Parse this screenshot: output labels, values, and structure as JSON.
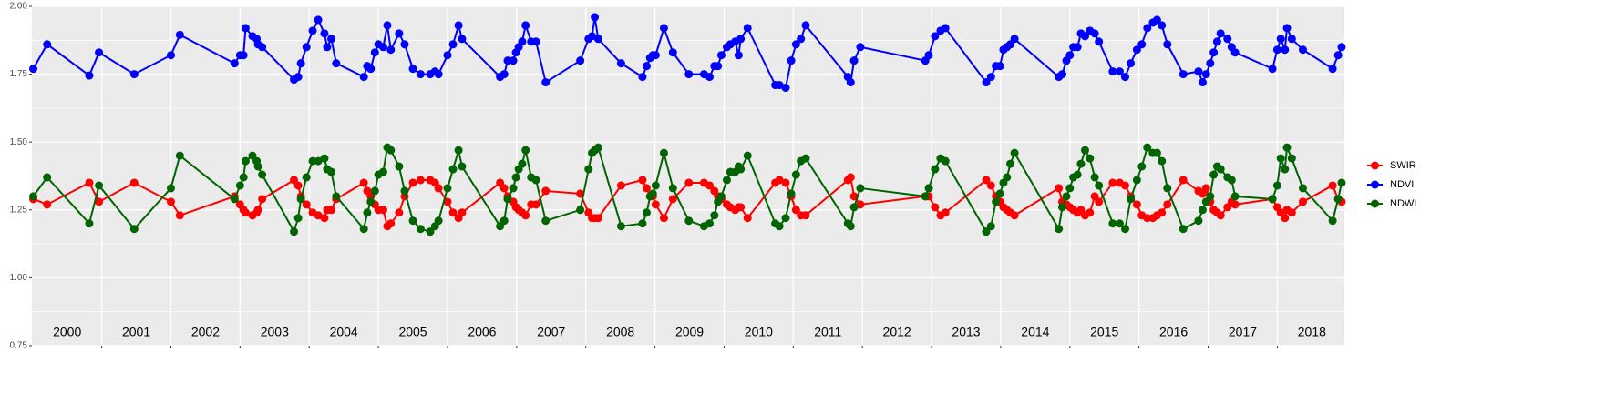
{
  "chart_data": {
    "type": "line",
    "xlim": [
      1999.99,
      2018.97
    ],
    "ylim": [
      0.75,
      2.0
    ],
    "yticks": [
      0.75,
      {
        "value": 1,
        "label": "1.00"
      },
      1.25,
      {
        "value": 1.5,
        "label": "1.50"
      },
      1.75,
      {
        "value": 2,
        "label": "2.00"
      }
    ],
    "xticks": [
      2001,
      2002,
      2003,
      2004,
      2005,
      2006,
      2007,
      2008,
      2009,
      2010,
      2011,
      2012,
      2013,
      2014,
      2015,
      2016,
      2017,
      2018
    ],
    "grid": true,
    "legend": "right",
    "year_labels": [
      "2000",
      "2001",
      "2002",
      "2003",
      "2004",
      "2005",
      "2006",
      "2007",
      "2008",
      "2009",
      "2010",
      "2011",
      "2012",
      "2013",
      "2014",
      "2015",
      "2016",
      "2017",
      "2018"
    ],
    "x": [
      2000.01,
      2000.21,
      2000.82,
      2000.96,
      2001.47,
      2002.0,
      2002.13,
      2002.92,
      2003.0,
      2003.05,
      2003.08,
      2003.18,
      2003.24,
      2003.26,
      2003.32,
      2003.78,
      2003.84,
      2003.88,
      2003.96,
      2004.05,
      2004.13,
      2004.22,
      2004.26,
      2004.32,
      2004.39,
      2004.79,
      2004.84,
      2004.89,
      2004.95,
      2005.0,
      2005.07,
      2005.13,
      2005.18,
      2005.3,
      2005.38,
      2005.5,
      2005.61,
      2005.75,
      2005.82,
      2005.87,
      2006.0,
      2006.08,
      2006.16,
      2006.21,
      2006.76,
      2006.82,
      2006.87,
      2006.95,
      2006.99,
      2007.03,
      2007.08,
      2007.13,
      2007.21,
      2007.28,
      2007.42,
      2007.92,
      2008.04,
      2008.09,
      2008.13,
      2008.18,
      2008.51,
      2008.82,
      2008.88,
      2008.93,
      2008.97,
      2009.01,
      2009.13,
      2009.26,
      2009.49,
      2009.71,
      2009.79,
      2009.86,
      2009.91,
      2009.96,
      2010.04,
      2010.09,
      2010.16,
      2010.21,
      2010.24,
      2010.34,
      2010.74,
      2010.8,
      2010.89,
      2010.97,
      2011.04,
      2011.11,
      2011.18,
      2011.79,
      2011.83,
      2011.88,
      2011.97,
      2012.91,
      2012.96,
      2013.05,
      2013.13,
      2013.2,
      2013.79,
      2013.86,
      2013.93,
      2013.99,
      2014.04,
      2014.09,
      2014.14,
      2014.2,
      2014.84,
      2014.89,
      2014.95,
      2015.0,
      2015.05,
      2015.11,
      2015.16,
      2015.22,
      2015.29,
      2015.36,
      2015.42,
      2015.62,
      2015.72,
      2015.8,
      2015.88,
      2015.97,
      2016.04,
      2016.12,
      2016.2,
      2016.26,
      2016.33,
      2016.41,
      2016.64,
      2016.86,
      2016.92,
      2016.97,
      2017.03,
      2017.08,
      2017.13,
      2017.18,
      2017.28,
      2017.34,
      2017.39,
      2017.93,
      2018.0,
      2018.05,
      2018.11,
      2018.14,
      2018.21,
      2018.37,
      2018.8,
      2018.88,
      2018.93
    ],
    "series": [
      {
        "name": "SWIR",
        "color": "#ff0000",
        "values": [
          1.29,
          1.27,
          1.35,
          1.28,
          1.35,
          1.28,
          1.23,
          1.3,
          1.27,
          1.25,
          1.24,
          1.23,
          1.24,
          1.25,
          1.29,
          1.36,
          1.34,
          1.3,
          1.27,
          1.24,
          1.23,
          1.22,
          1.25,
          1.25,
          1.29,
          1.35,
          1.32,
          1.3,
          1.27,
          1.25,
          1.25,
          1.19,
          1.2,
          1.24,
          1.3,
          1.35,
          1.36,
          1.36,
          1.35,
          1.33,
          1.28,
          1.24,
          1.22,
          1.24,
          1.35,
          1.33,
          1.3,
          1.28,
          1.26,
          1.25,
          1.24,
          1.23,
          1.27,
          1.27,
          1.32,
          1.31,
          1.24,
          1.22,
          1.22,
          1.22,
          1.34,
          1.36,
          1.33,
          1.3,
          1.3,
          1.27,
          1.22,
          1.29,
          1.35,
          1.35,
          1.34,
          1.32,
          1.3,
          1.29,
          1.27,
          1.26,
          1.25,
          1.26,
          1.26,
          1.22,
          1.35,
          1.36,
          1.35,
          1.3,
          1.25,
          1.23,
          1.23,
          1.36,
          1.37,
          1.3,
          1.27,
          1.3,
          1.3,
          1.26,
          1.23,
          1.24,
          1.36,
          1.34,
          1.3,
          1.28,
          1.26,
          1.25,
          1.24,
          1.23,
          1.33,
          1.28,
          1.27,
          1.26,
          1.25,
          1.24,
          1.25,
          1.23,
          1.24,
          1.3,
          1.28,
          1.35,
          1.35,
          1.34,
          1.3,
          1.27,
          1.23,
          1.22,
          1.22,
          1.23,
          1.24,
          1.27,
          1.36,
          1.32,
          1.31,
          1.33,
          1.28,
          1.25,
          1.24,
          1.23,
          1.26,
          1.28,
          1.27,
          1.29,
          1.26,
          1.24,
          1.22,
          1.25,
          1.24,
          1.28,
          1.34,
          1.29,
          1.28
        ]
      },
      {
        "name": "NDVI",
        "color": "#0000ff",
        "values": [
          1.77,
          1.86,
          1.745,
          1.83,
          1.75,
          1.82,
          1.895,
          1.79,
          1.82,
          1.82,
          1.92,
          1.89,
          1.88,
          1.86,
          1.85,
          1.73,
          1.74,
          1.79,
          1.85,
          1.91,
          1.95,
          1.9,
          1.85,
          1.88,
          1.79,
          1.74,
          1.78,
          1.77,
          1.83,
          1.86,
          1.85,
          1.93,
          1.84,
          1.9,
          1.86,
          1.77,
          1.75,
          1.75,
          1.76,
          1.75,
          1.82,
          1.86,
          1.93,
          1.88,
          1.74,
          1.75,
          1.8,
          1.8,
          1.83,
          1.85,
          1.87,
          1.93,
          1.87,
          1.87,
          1.72,
          1.8,
          1.88,
          1.89,
          1.96,
          1.88,
          1.79,
          1.74,
          1.78,
          1.81,
          1.82,
          1.82,
          1.92,
          1.83,
          1.75,
          1.75,
          1.74,
          1.78,
          1.78,
          1.82,
          1.85,
          1.86,
          1.87,
          1.82,
          1.88,
          1.92,
          1.71,
          1.71,
          1.7,
          1.8,
          1.86,
          1.88,
          1.93,
          1.74,
          1.72,
          1.8,
          1.85,
          1.8,
          1.82,
          1.89,
          1.91,
          1.92,
          1.72,
          1.74,
          1.78,
          1.78,
          1.84,
          1.85,
          1.86,
          1.88,
          1.74,
          1.75,
          1.8,
          1.82,
          1.85,
          1.85,
          1.9,
          1.89,
          1.91,
          1.9,
          1.87,
          1.76,
          1.76,
          1.74,
          1.79,
          1.84,
          1.86,
          1.92,
          1.94,
          1.95,
          1.93,
          1.86,
          1.75,
          1.76,
          1.72,
          1.75,
          1.79,
          1.83,
          1.87,
          1.9,
          1.88,
          1.85,
          1.83,
          1.77,
          1.84,
          1.88,
          1.84,
          1.92,
          1.88,
          1.84,
          1.77,
          1.82,
          1.85
        ]
      },
      {
        "name": "NDWI",
        "color": "#006400",
        "values": [
          1.3,
          1.37,
          1.2,
          1.34,
          1.18,
          1.33,
          1.45,
          1.29,
          1.34,
          1.37,
          1.43,
          1.45,
          1.43,
          1.41,
          1.38,
          1.17,
          1.22,
          1.29,
          1.37,
          1.43,
          1.43,
          1.44,
          1.4,
          1.39,
          1.3,
          1.18,
          1.24,
          1.28,
          1.32,
          1.38,
          1.39,
          1.48,
          1.47,
          1.41,
          1.32,
          1.21,
          1.18,
          1.17,
          1.19,
          1.21,
          1.33,
          1.4,
          1.47,
          1.41,
          1.19,
          1.21,
          1.29,
          1.33,
          1.37,
          1.4,
          1.42,
          1.47,
          1.37,
          1.36,
          1.21,
          1.25,
          1.4,
          1.46,
          1.47,
          1.48,
          1.19,
          1.2,
          1.24,
          1.3,
          1.31,
          1.34,
          1.46,
          1.33,
          1.21,
          1.19,
          1.2,
          1.23,
          1.28,
          1.3,
          1.36,
          1.39,
          1.39,
          1.41,
          1.4,
          1.45,
          1.2,
          1.19,
          1.22,
          1.31,
          1.38,
          1.43,
          1.44,
          1.2,
          1.19,
          1.26,
          1.33,
          1.3,
          1.33,
          1.4,
          1.44,
          1.43,
          1.17,
          1.19,
          1.28,
          1.31,
          1.35,
          1.37,
          1.42,
          1.46,
          1.18,
          1.26,
          1.3,
          1.33,
          1.37,
          1.38,
          1.42,
          1.47,
          1.44,
          1.37,
          1.34,
          1.2,
          1.2,
          1.18,
          1.29,
          1.36,
          1.41,
          1.48,
          1.46,
          1.46,
          1.43,
          1.33,
          1.18,
          1.21,
          1.25,
          1.28,
          1.3,
          1.38,
          1.41,
          1.4,
          1.37,
          1.36,
          1.3,
          1.29,
          1.34,
          1.44,
          1.4,
          1.48,
          1.44,
          1.33,
          1.21,
          1.29,
          1.35
        ]
      }
    ]
  }
}
